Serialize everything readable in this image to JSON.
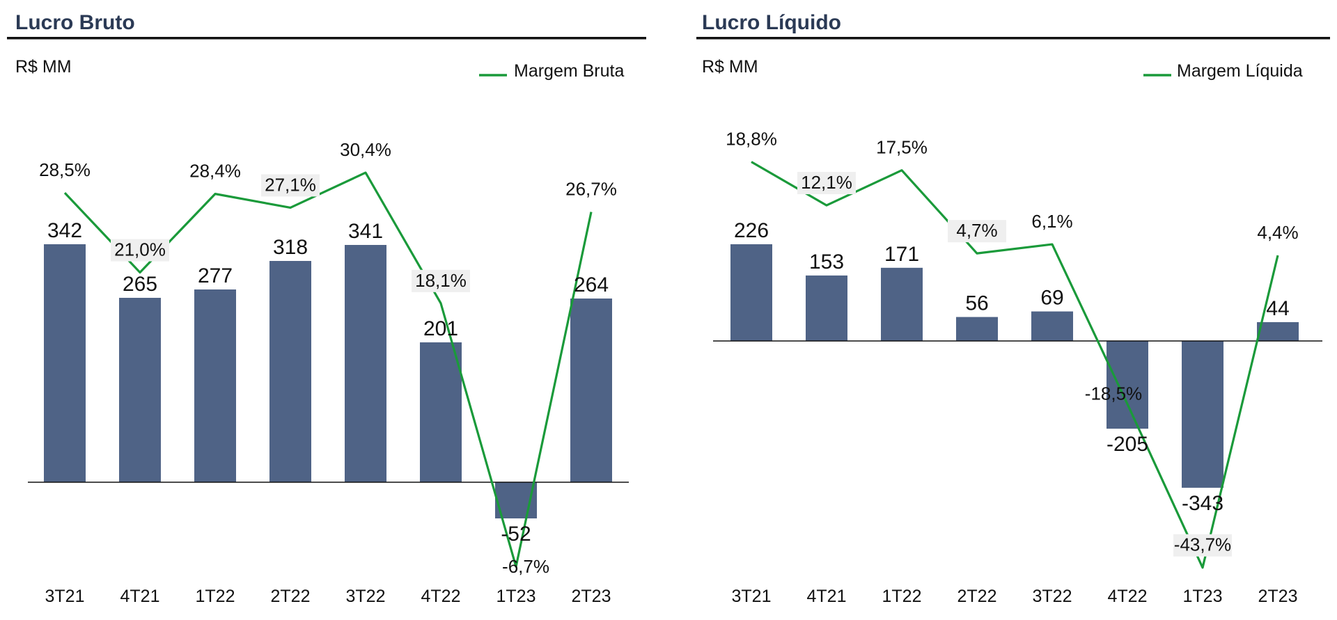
{
  "colors": {
    "bar": "#4f6386",
    "line": "#1a9a3a",
    "title": "#2b3a55",
    "label_bg": "#efefef"
  },
  "chart_data": [
    {
      "type": "bar+line",
      "title": "Lucro Bruto",
      "unit": "R$ MM",
      "categories": [
        "3T21",
        "4T21",
        "1T22",
        "2T22",
        "3T22",
        "4T22",
        "1T23",
        "2T23"
      ],
      "series": [
        {
          "name": "Lucro Bruto",
          "type": "bar",
          "values": [
            342,
            265,
            277,
            318,
            341,
            201,
            -52,
            264
          ],
          "labels": [
            "342",
            "265",
            "277",
            "318",
            "341",
            "201",
            "-52",
            "264"
          ]
        },
        {
          "name": "Margem Bruta",
          "type": "line",
          "values": [
            28.5,
            21.0,
            28.4,
            27.1,
            30.4,
            18.1,
            -6.7,
            26.7
          ],
          "labels": [
            "28,5%",
            "21,0%",
            "28,4%",
            "27,1%",
            "30,4%",
            "18,1%",
            "-6,7%",
            "26,7%"
          ]
        }
      ],
      "legend": [
        "Margem Bruta"
      ],
      "legend_position": "top-right"
    },
    {
      "type": "bar+line",
      "title": "Lucro Líquido",
      "unit": "R$ MM",
      "categories": [
        "3T21",
        "4T21",
        "1T22",
        "2T22",
        "3T22",
        "4T22",
        "1T23",
        "2T23"
      ],
      "series": [
        {
          "name": "Lucro Líquido",
          "type": "bar",
          "values": [
            226,
            153,
            171,
            56,
            69,
            -205,
            -343,
            44
          ],
          "labels": [
            "226",
            "153",
            "171",
            "56",
            "69",
            "-205",
            "-343",
            "44"
          ]
        },
        {
          "name": "Margem Líquida",
          "type": "line",
          "values": [
            18.8,
            12.1,
            17.5,
            4.7,
            6.1,
            -18.5,
            -43.7,
            4.4
          ],
          "labels": [
            "18,8%",
            "12,1%",
            "17,5%",
            "4,7%",
            "6,1%",
            "-18,5%",
            "-43,7%",
            "4,4%"
          ]
        }
      ],
      "legend": [
        "Margem Líquida"
      ],
      "legend_position": "top-right"
    }
  ]
}
